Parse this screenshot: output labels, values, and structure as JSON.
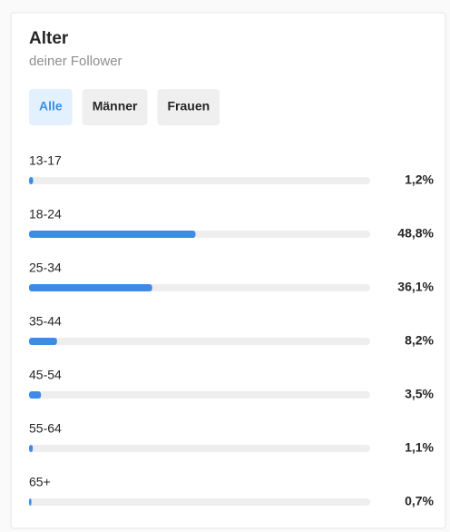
{
  "tabs": [
    "Alle",
    "Männer",
    "Frauen"
  ],
  "active_tab": 0,
  "chart_data": {
    "type": "bar",
    "orientation": "horizontal",
    "title": "Alter",
    "subtitle": "deiner Follower",
    "categories": [
      "13-17",
      "18-24",
      "25-34",
      "35-44",
      "45-54",
      "55-64",
      "65+"
    ],
    "values": [
      1.2,
      48.8,
      36.1,
      8.2,
      3.5,
      1.1,
      0.7
    ],
    "value_labels": [
      "1,2%",
      "48,8%",
      "36,1%",
      "8,2%",
      "3,5%",
      "1,1%",
      "0,7%"
    ],
    "xlim": [
      0,
      100
    ],
    "color": "#3d8be6",
    "track_color": "#eeeeee"
  }
}
